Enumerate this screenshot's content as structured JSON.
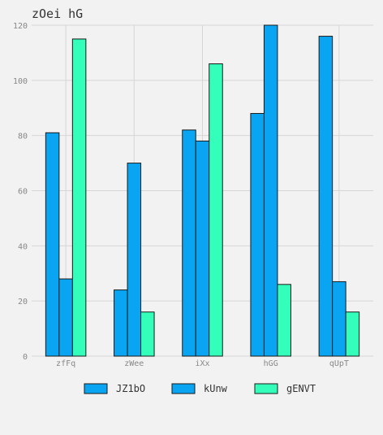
{
  "chart_data": {
    "type": "bar",
    "title": "zOei hG",
    "xlabel": "",
    "ylabel": "",
    "categories": [
      "zfFq",
      "zWee",
      "iXx",
      "hGG",
      "qUpT"
    ],
    "series": [
      {
        "name": "JZ1bO",
        "values": [
          81,
          24,
          82,
          88,
          116
        ],
        "color": "#0aa5f2"
      },
      {
        "name": "kUnw",
        "values": [
          28,
          70,
          78,
          120,
          27
        ],
        "color": "#0aa5f2"
      },
      {
        "name": "gENVT",
        "values": [
          115,
          16,
          106,
          26,
          16
        ],
        "color": "#33ffbb"
      }
    ],
    "ylim": [
      0,
      120
    ],
    "yticks": [
      0,
      20,
      40,
      60,
      80,
      100,
      120
    ],
    "grid": true,
    "legend_position": "bottom"
  }
}
